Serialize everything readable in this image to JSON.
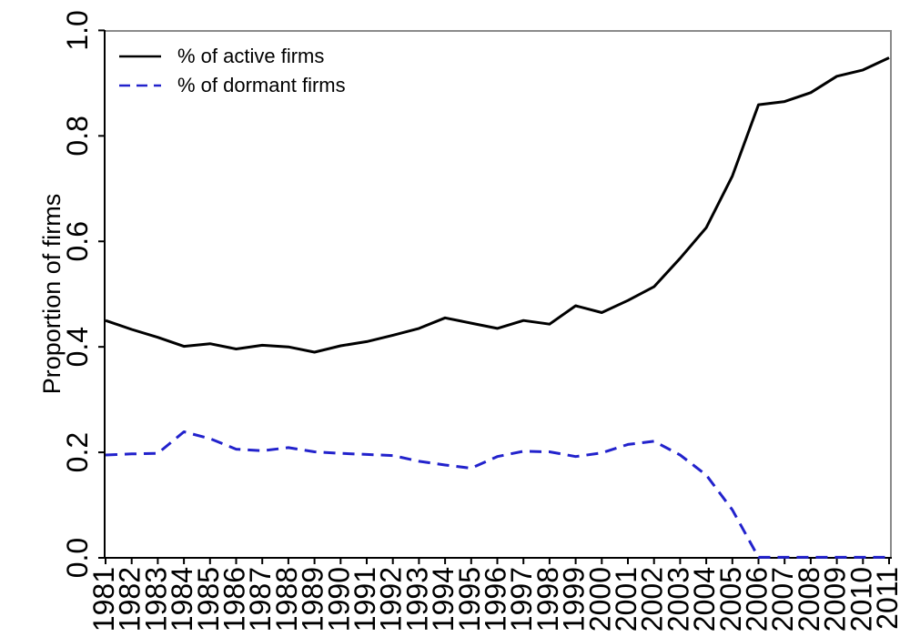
{
  "figure": {
    "background": "#ffffff",
    "axis_color": "#000000",
    "box_color": "#8a8a8a"
  },
  "legend": {
    "position": "top-left",
    "items": [
      {
        "label": "% of active firms",
        "color": "#000000",
        "style": "solid"
      },
      {
        "label": "% of dormant firms",
        "color": "#2222cc",
        "style": "dashed"
      }
    ]
  },
  "chart_data": {
    "type": "line",
    "title": "",
    "xlabel": "",
    "ylabel": "Proportion of firms",
    "ylim": [
      0.0,
      1.0
    ],
    "grid": false,
    "legend_position": "top-left",
    "x_tick_rotation": 90,
    "y_tick_rotation": 90,
    "y_tick_labels": [
      "0.0",
      "0.2",
      "0.4",
      "0.6",
      "0.8",
      "1.0"
    ],
    "x": [
      1981,
      1982,
      1983,
      1984,
      1985,
      1986,
      1987,
      1988,
      1989,
      1990,
      1991,
      1992,
      1993,
      1994,
      1995,
      1996,
      1997,
      1998,
      1999,
      2000,
      2001,
      2002,
      2003,
      2004,
      2005,
      2006,
      2007,
      2008,
      2009,
      2010,
      2011
    ],
    "series": [
      {
        "name": "% of active firms",
        "color": "#000000",
        "style": "solid",
        "values": [
          0.45,
          0.433,
          0.418,
          0.401,
          0.406,
          0.396,
          0.403,
          0.4,
          0.39,
          0.402,
          0.41,
          0.422,
          0.435,
          0.455,
          0.445,
          0.435,
          0.45,
          0.443,
          0.478,
          0.465,
          0.488,
          0.514,
          0.568,
          0.626,
          0.724,
          0.859,
          0.865,
          0.882,
          0.913,
          0.925,
          0.948
        ]
      },
      {
        "name": "% of dormant firms",
        "color": "#2222cc",
        "style": "dashed",
        "values": [
          0.195,
          0.197,
          0.198,
          0.239,
          0.226,
          0.206,
          0.203,
          0.209,
          0.201,
          0.198,
          0.196,
          0.194,
          0.183,
          0.176,
          0.17,
          0.192,
          0.202,
          0.201,
          0.192,
          0.199,
          0.215,
          0.221,
          0.195,
          0.157,
          0.091,
          0.001,
          0.001,
          0.001,
          0.001,
          0.001,
          0.001
        ]
      }
    ]
  }
}
